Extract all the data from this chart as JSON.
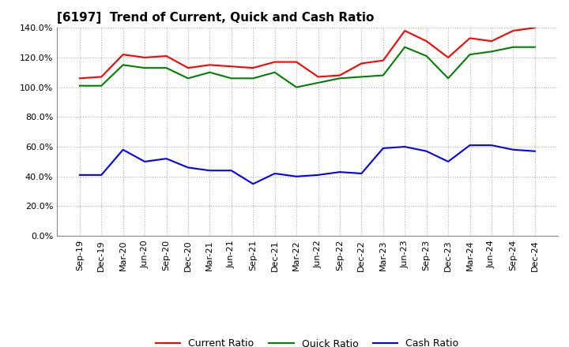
{
  "title": "[6197]  Trend of Current, Quick and Cash Ratio",
  "labels": [
    "Sep-19",
    "Dec-19",
    "Mar-20",
    "Jun-20",
    "Sep-20",
    "Dec-20",
    "Mar-21",
    "Jun-21",
    "Sep-21",
    "Dec-21",
    "Mar-22",
    "Jun-22",
    "Sep-22",
    "Dec-22",
    "Mar-23",
    "Jun-23",
    "Sep-23",
    "Dec-23",
    "Mar-24",
    "Jun-24",
    "Sep-24",
    "Dec-24"
  ],
  "current_ratio": [
    106,
    107,
    122,
    120,
    121,
    113,
    115,
    114,
    113,
    117,
    117,
    107,
    108,
    116,
    118,
    138,
    131,
    120,
    133,
    131,
    138,
    140
  ],
  "quick_ratio": [
    101,
    101,
    115,
    113,
    113,
    106,
    110,
    106,
    106,
    110,
    100,
    103,
    106,
    107,
    108,
    127,
    121,
    106,
    122,
    124,
    127,
    127
  ],
  "cash_ratio": [
    41,
    41,
    58,
    50,
    52,
    46,
    44,
    44,
    35,
    42,
    40,
    41,
    43,
    42,
    59,
    60,
    57,
    50,
    61,
    61,
    58,
    57
  ],
  "current_color": "#ff0000",
  "quick_color": "#008000",
  "cash_color": "#0000ff",
  "ylim": [
    0,
    140
  ],
  "yticks": [
    0,
    20,
    40,
    60,
    80,
    100,
    120,
    140
  ],
  "background_color": "#ffffff",
  "grid_color": "#b0b0b0",
  "title_fontsize": 11,
  "tick_fontsize": 8,
  "legend_fontsize": 9
}
